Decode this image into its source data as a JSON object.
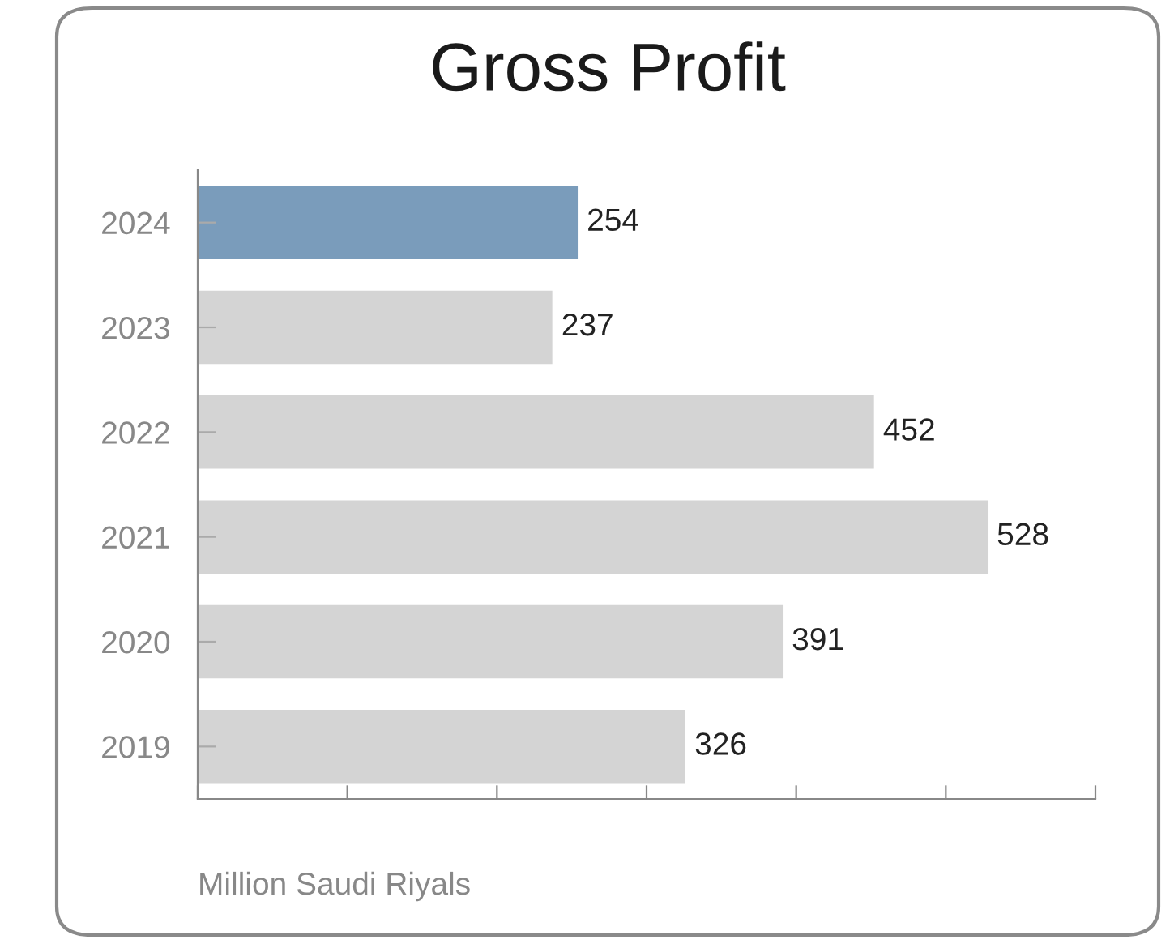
{
  "chart_data": {
    "type": "bar",
    "orientation": "horizontal",
    "title": "Gross Profit",
    "xlabel": "Million Saudi Riyals",
    "categories": [
      "2024",
      "2023",
      "2022",
      "2021",
      "2020",
      "2019"
    ],
    "values": [
      254,
      237,
      452,
      528,
      391,
      326
    ],
    "colors": [
      "#7a9cbb",
      "#d4d4d4",
      "#d4d4d4",
      "#d4d4d4",
      "#d4d4d4",
      "#d4d4d4"
    ],
    "xlim": [
      0,
      600
    ],
    "xticks": [
      {
        "value": 0,
        "label": null
      },
      {
        "value": 100,
        "label": null
      },
      {
        "value": 200,
        "label": null
      },
      {
        "value": 300,
        "label": null
      },
      {
        "value": 400,
        "label": null
      },
      {
        "value": 500,
        "label": null
      },
      {
        "value": 600,
        "label": null
      }
    ],
    "tick_labels": "y",
    "data_labels": true
  }
}
